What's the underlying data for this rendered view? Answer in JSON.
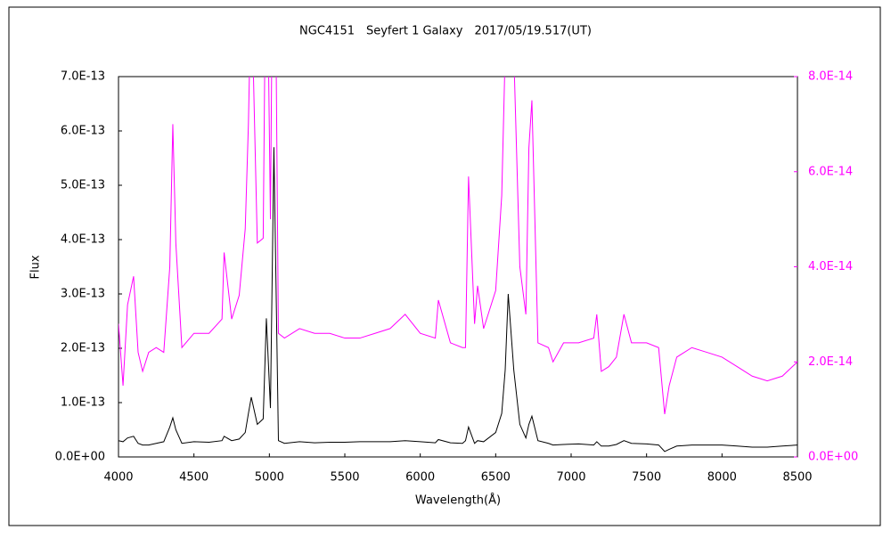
{
  "chart_data": {
    "type": "line",
    "title": "NGC4151　Seyfert 1 Galaxy　2017/05/19.517(UT)",
    "xlabel": "Wavelength(Å)",
    "ylabel": "Flux",
    "x": [
      4000,
      4030,
      4060,
      4100,
      4130,
      4160,
      4200,
      4250,
      4300,
      4340,
      4360,
      4380,
      4420,
      4500,
      4600,
      4686,
      4700,
      4750,
      4800,
      4840,
      4861,
      4880,
      4920,
      4959,
      4980,
      5007,
      5030,
      5060,
      5100,
      5200,
      5300,
      5400,
      5500,
      5600,
      5700,
      5800,
      5900,
      6000,
      6100,
      6120,
      6200,
      6280,
      6300,
      6320,
      6360,
      6380,
      6420,
      6500,
      6540,
      6563,
      6583,
      6620,
      6660,
      6700,
      6720,
      6740,
      6780,
      6850,
      6880,
      6950,
      7050,
      7150,
      7170,
      7200,
      7250,
      7300,
      7350,
      7400,
      7500,
      7580,
      7620,
      7650,
      7700,
      7800,
      7900,
      8000,
      8100,
      8200,
      8300,
      8400,
      8500
    ],
    "series": [
      {
        "color": "#000000",
        "values": [
          3e-14,
          2.8e-14,
          3.5e-14,
          3.8e-14,
          2.5e-14,
          2.2e-14,
          2.2e-14,
          2.5e-14,
          2.8e-14,
          5.5e-14,
          7.2e-14,
          5e-14,
          2.5e-14,
          2.8e-14,
          2.7e-14,
          3e-14,
          3.8e-14,
          3e-14,
          3.3e-14,
          4.5e-14,
          8e-14,
          1.1e-13,
          6e-14,
          7e-14,
          2.55e-13,
          9e-14,
          5.7e-13,
          3e-14,
          2.5e-14,
          2.8e-14,
          2.6e-14,
          2.7e-14,
          2.7e-14,
          2.8e-14,
          2.8e-14,
          2.8e-14,
          3e-14,
          2.8e-14,
          2.6e-14,
          3.2e-14,
          2.6e-14,
          2.5e-14,
          3e-14,
          5.5e-14,
          2.5e-14,
          3e-14,
          2.8e-14,
          4.5e-14,
          8e-14,
          1.6e-13,
          3e-13,
          1.6e-13,
          6e-14,
          3.5e-14,
          6e-14,
          7.5e-14,
          3e-14,
          2.5e-14,
          2.2e-14,
          2.3e-14,
          2.4e-14,
          2.2e-14,
          2.8e-14,
          2e-14,
          2e-14,
          2.3e-14,
          3e-14,
          2.5e-14,
          2.4e-14,
          2.2e-14,
          1e-14,
          1.4e-14,
          2e-14,
          2.2e-14,
          2.2e-14,
          2.2e-14,
          2e-14,
          1.8e-14,
          1.8e-14,
          2e-14,
          2.2e-14
        ]
      },
      {
        "color": "#ff00ff",
        "axis": "y2",
        "values": [
          2.8e-14,
          1.5e-14,
          3.2e-14,
          3.8e-14,
          2.2e-14,
          1.8e-14,
          2.2e-14,
          2.3e-14,
          2.2e-14,
          4e-14,
          7e-14,
          4.5e-14,
          2.3e-14,
          2.6e-14,
          2.6e-14,
          2.9e-14,
          4.3e-14,
          2.9e-14,
          3.4e-14,
          4.8e-14,
          7e-14,
          1e-13,
          4.5e-14,
          4.6e-14,
          1.2e-13,
          5e-14,
          1.4e-13,
          2.6e-14,
          2.5e-14,
          2.7e-14,
          2.6e-14,
          2.6e-14,
          2.5e-14,
          2.5e-14,
          2.6e-14,
          2.7e-14,
          3e-14,
          2.6e-14,
          2.5e-14,
          3.3e-14,
          2.4e-14,
          2.3e-14,
          2.3e-14,
          5.9e-14,
          2.8e-14,
          3.6e-14,
          2.7e-14,
          3.5e-14,
          5.5e-14,
          8.5e-14,
          1.2e-13,
          8.5e-14,
          4e-14,
          3e-14,
          6.5e-14,
          7.5e-14,
          2.4e-14,
          2.3e-14,
          2e-14,
          2.4e-14,
          2.4e-14,
          2.5e-14,
          3e-14,
          1.8e-14,
          1.9e-14,
          2.1e-14,
          3e-14,
          2.4e-14,
          2.4e-14,
          2.3e-14,
          9e-15,
          1.5e-14,
          2.1e-14,
          2.3e-14,
          2.2e-14,
          2.1e-14,
          1.9e-14,
          1.7e-14,
          1.6e-14,
          1.7e-14,
          2e-14
        ]
      }
    ],
    "xlim": [
      4000,
      8500
    ],
    "xticks": [
      4000,
      4500,
      5000,
      5500,
      6000,
      6500,
      7000,
      7500,
      8000,
      8500
    ],
    "ylim": [
      0,
      7e-13
    ],
    "yticks": [
      {
        "value": 0,
        "label": "0.0E+00"
      },
      {
        "value": 1e-13,
        "label": "1.0E-13"
      },
      {
        "value": 2e-13,
        "label": "2.0E-13"
      },
      {
        "value": 3e-13,
        "label": "3.0E-13"
      },
      {
        "value": 4e-13,
        "label": "4.0E-13"
      },
      {
        "value": 5e-13,
        "label": "5.0E-13"
      },
      {
        "value": 6e-13,
        "label": "6.0E-13"
      },
      {
        "value": 7e-13,
        "label": "7.0E-13"
      }
    ],
    "y2lim": [
      0,
      8e-14
    ],
    "y2ticks": [
      {
        "value": 0,
        "label": "0.0E+00"
      },
      {
        "value": 2e-14,
        "label": "2.0E-14"
      },
      {
        "value": 4e-14,
        "label": "4.0E-14"
      },
      {
        "value": 6e-14,
        "label": "6.0E-14"
      },
      {
        "value": 8e-14,
        "label": "8.0E-14"
      }
    ],
    "y2color": "#ff00ff"
  }
}
